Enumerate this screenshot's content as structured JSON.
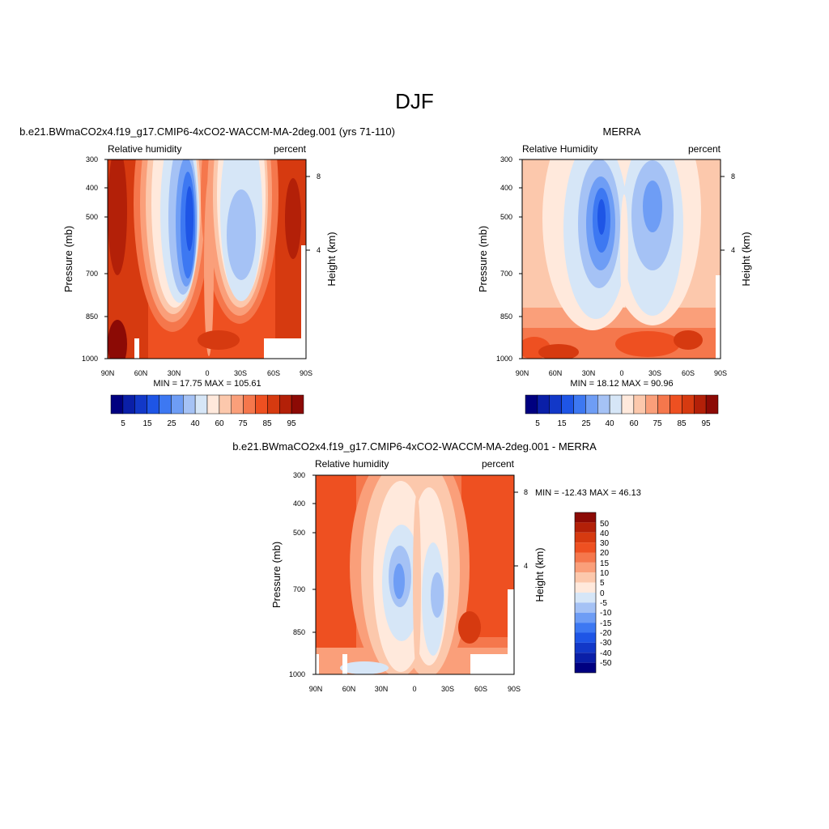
{
  "figure": {
    "title": "DJF"
  },
  "colors": {
    "abs_palette": [
      "#000080",
      "#0a1fa8",
      "#1238c8",
      "#1e55e6",
      "#3d78f2",
      "#6e9df5",
      "#a5c2f5",
      "#d6e6f7",
      "#ffe9dc",
      "#fcc8ac",
      "#fa9f7a",
      "#f5774c",
      "#ee5021",
      "#d63a10",
      "#b32008",
      "#8c0a05"
    ],
    "diff_palette": [
      "#000080",
      "#0a1fa8",
      "#1238c8",
      "#1e55e6",
      "#3d78f2",
      "#6e9df5",
      "#a5c2f5",
      "#d6e6f7",
      "#ffe9dc",
      "#fcc8ac",
      "#fa9f7a",
      "#f5774c",
      "#ee5021",
      "#d63a10",
      "#b32008",
      "#8c0a05"
    ]
  },
  "chart_data": [
    {
      "type": "heatmap",
      "title": "b.e21.BWmaCO2x4.f19_g17.CMIP6-4xCO2-WACCM-MA-2deg.001 (yrs 71-110)",
      "left_label": "Relative humidity",
      "right_label": "percent",
      "xlabel": "",
      "ylabel": "Pressure (mb)",
      "y2label": "Height (km)",
      "x_ticks": [
        "90N",
        "60N",
        "30N",
        "0",
        "30S",
        "60S",
        "90S"
      ],
      "y_ticks": [
        "300",
        "400",
        "500",
        "700",
        "850",
        "1000"
      ],
      "y2_ticks": [
        "8",
        "4"
      ],
      "stats": "MIN =  17.75  MAX = 105.61",
      "colorbar_labels": [
        "5",
        "15",
        "25",
        "40",
        "60",
        "75",
        "85",
        "95"
      ],
      "levels": [
        5,
        10,
        15,
        20,
        25,
        30,
        40,
        50,
        60,
        70,
        75,
        80,
        85,
        90,
        95
      ],
      "ylim": [
        1000,
        300
      ]
    },
    {
      "type": "heatmap",
      "title": "MERRA",
      "left_label": "Relative Humidity",
      "right_label": "percent",
      "xlabel": "",
      "ylabel": "Pressure (mb)",
      "y2label": "Height (km)",
      "x_ticks": [
        "90N",
        "60N",
        "30N",
        "0",
        "30S",
        "60S",
        "90S"
      ],
      "y_ticks": [
        "300",
        "400",
        "500",
        "700",
        "850",
        "1000"
      ],
      "y2_ticks": [
        "8",
        "4"
      ],
      "stats": "MIN =  18.12  MAX =  90.96",
      "colorbar_labels": [
        "5",
        "15",
        "25",
        "40",
        "60",
        "75",
        "85",
        "95"
      ],
      "levels": [
        5,
        10,
        15,
        20,
        25,
        30,
        40,
        50,
        60,
        70,
        75,
        80,
        85,
        90,
        95
      ],
      "ylim": [
        1000,
        300
      ]
    },
    {
      "type": "heatmap",
      "title": "b.e21.BWmaCO2x4.f19_g17.CMIP6-4xCO2-WACCM-MA-2deg.001 - MERRA",
      "left_label": "Relative humidity",
      "right_label": "percent",
      "xlabel": "",
      "ylabel": "Pressure (mb)",
      "y2label": "Height (km)",
      "x_ticks": [
        "90N",
        "60N",
        "30N",
        "0",
        "30S",
        "60S",
        "90S"
      ],
      "y_ticks": [
        "300",
        "400",
        "500",
        "700",
        "850",
        "1000"
      ],
      "y2_ticks": [
        "8",
        "4"
      ],
      "stats": "MIN = -12.43  MAX =  46.13",
      "colorbar_labels": [
        "50",
        "40",
        "30",
        "20",
        "15",
        "10",
        "5",
        "0",
        "-5",
        "-10",
        "-15",
        "-20",
        "-30",
        "-40",
        "-50"
      ],
      "levels": [
        -50,
        -40,
        -30,
        -20,
        -15,
        -10,
        -5,
        0,
        5,
        10,
        15,
        20,
        30,
        40,
        50
      ],
      "ylim": [
        1000,
        300
      ]
    }
  ]
}
